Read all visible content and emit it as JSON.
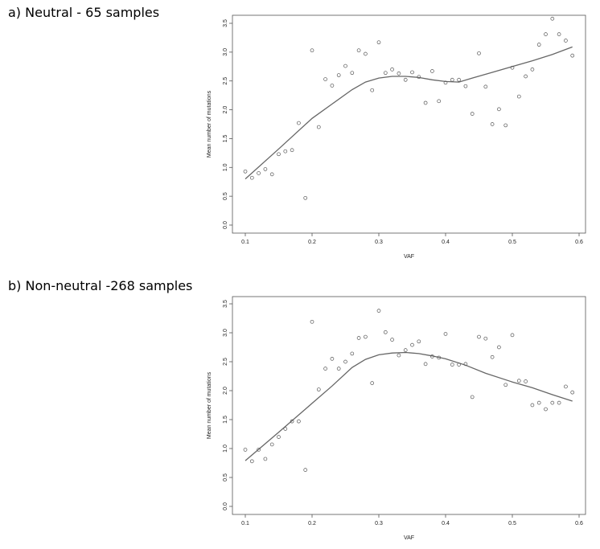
{
  "panels": [
    {
      "caption": "a) Neutral - 65 samples"
    },
    {
      "caption": "b) Non-neutral -268 samples"
    }
  ],
  "chart_data": [
    {
      "type": "scatter",
      "title": "",
      "xlabel": "VAF",
      "ylabel": "Mean number of mutations",
      "xlim": [
        0.1,
        0.6
      ],
      "ylim": [
        0.0,
        3.5
      ],
      "xticks": [
        "0.1",
        "0.2",
        "0.3",
        "0.4",
        "0.5",
        "0.6"
      ],
      "yticks": [
        "0.0",
        "0.5",
        "1.0",
        "1.5",
        "2.0",
        "2.5",
        "3.0",
        "3.5"
      ],
      "points": {
        "x": [
          0.1,
          0.11,
          0.12,
          0.13,
          0.14,
          0.15,
          0.16,
          0.17,
          0.18,
          0.19,
          0.2,
          0.21,
          0.22,
          0.23,
          0.24,
          0.25,
          0.26,
          0.27,
          0.28,
          0.29,
          0.3,
          0.31,
          0.32,
          0.33,
          0.34,
          0.35,
          0.36,
          0.37,
          0.38,
          0.39,
          0.4,
          0.41,
          0.42,
          0.43,
          0.44,
          0.45,
          0.46,
          0.47,
          0.48,
          0.49,
          0.5,
          0.51,
          0.52,
          0.53,
          0.54,
          0.55,
          0.56,
          0.57,
          0.58,
          0.59
        ],
        "y": [
          0.93,
          0.82,
          0.9,
          0.97,
          0.88,
          1.23,
          1.28,
          1.3,
          1.77,
          0.47,
          3.03,
          1.7,
          2.53,
          2.42,
          2.6,
          2.76,
          2.64,
          3.03,
          2.97,
          2.34,
          3.17,
          2.64,
          2.7,
          2.63,
          2.52,
          2.65,
          2.57,
          2.12,
          2.67,
          2.15,
          2.47,
          2.52,
          2.52,
          2.41,
          1.93,
          2.98,
          2.4,
          1.75,
          2.01,
          1.73,
          2.73,
          2.23,
          2.58,
          2.7,
          3.13,
          3.31,
          3.58,
          3.31,
          3.2,
          2.94
        ]
      },
      "trend": {
        "x": [
          0.1,
          0.15,
          0.2,
          0.23,
          0.26,
          0.28,
          0.3,
          0.32,
          0.34,
          0.36,
          0.38,
          0.4,
          0.42,
          0.44,
          0.47,
          0.5,
          0.53,
          0.56,
          0.59
        ],
        "y": [
          0.8,
          1.32,
          1.85,
          2.1,
          2.35,
          2.48,
          2.55,
          2.58,
          2.58,
          2.56,
          2.52,
          2.49,
          2.48,
          2.55,
          2.65,
          2.75,
          2.85,
          2.96,
          3.09
        ]
      }
    },
    {
      "type": "scatter",
      "title": "",
      "xlabel": "VAF",
      "ylabel": "Mean number of mutations",
      "xlim": [
        0.1,
        0.6
      ],
      "ylim": [
        0.0,
        3.5
      ],
      "xticks": [
        "0.1",
        "0.2",
        "0.3",
        "0.4",
        "0.5",
        "0.6"
      ],
      "yticks": [
        "0.0",
        "0.5",
        "1.0",
        "1.5",
        "2.0",
        "2.5",
        "3.0",
        "3.5"
      ],
      "points": {
        "x": [
          0.1,
          0.11,
          0.12,
          0.13,
          0.14,
          0.15,
          0.16,
          0.17,
          0.18,
          0.19,
          0.2,
          0.21,
          0.22,
          0.23,
          0.24,
          0.25,
          0.26,
          0.27,
          0.28,
          0.29,
          0.3,
          0.31,
          0.32,
          0.33,
          0.34,
          0.35,
          0.36,
          0.37,
          0.38,
          0.39,
          0.4,
          0.41,
          0.42,
          0.43,
          0.44,
          0.45,
          0.46,
          0.47,
          0.48,
          0.49,
          0.5,
          0.51,
          0.52,
          0.53,
          0.54,
          0.55,
          0.56,
          0.57,
          0.58,
          0.59
        ],
        "y": [
          0.98,
          0.78,
          0.98,
          0.82,
          1.07,
          1.2,
          1.34,
          1.47,
          1.47,
          0.63,
          3.19,
          2.02,
          2.38,
          2.55,
          2.38,
          2.5,
          2.64,
          2.91,
          2.93,
          2.13,
          3.38,
          3.01,
          2.88,
          2.61,
          2.7,
          2.79,
          2.85,
          2.46,
          2.59,
          2.57,
          2.98,
          2.45,
          2.45,
          2.46,
          1.89,
          2.93,
          2.9,
          2.58,
          2.75,
          2.1,
          2.96,
          2.17,
          2.16,
          1.75,
          1.79,
          1.68,
          1.79,
          1.79,
          2.07,
          1.97
        ]
      },
      "trend": {
        "x": [
          0.1,
          0.15,
          0.2,
          0.23,
          0.26,
          0.28,
          0.3,
          0.32,
          0.34,
          0.36,
          0.38,
          0.4,
          0.43,
          0.46,
          0.5,
          0.53,
          0.56,
          0.59
        ],
        "y": [
          0.79,
          1.28,
          1.78,
          2.08,
          2.4,
          2.54,
          2.62,
          2.65,
          2.66,
          2.64,
          2.6,
          2.55,
          2.44,
          2.3,
          2.15,
          2.05,
          1.93,
          1.82
        ]
      }
    }
  ]
}
